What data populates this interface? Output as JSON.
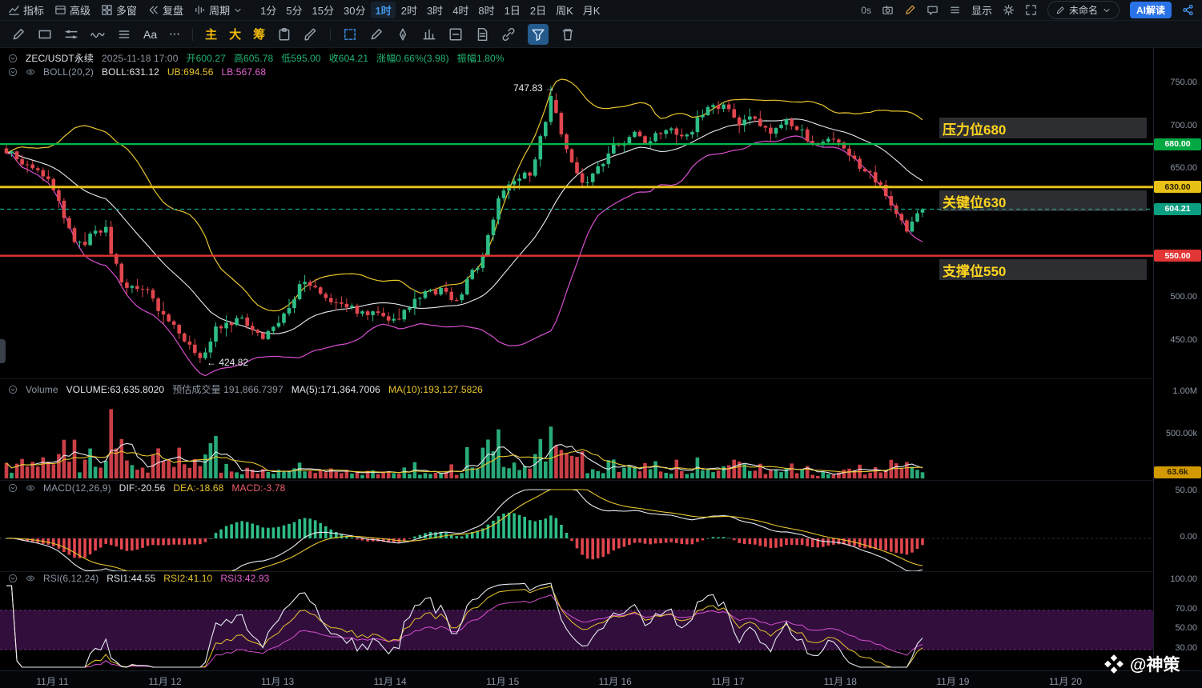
{
  "topbar": {
    "left_items": [
      {
        "name": "indicators",
        "icon": "indicator",
        "label": "指标"
      },
      {
        "name": "advanced",
        "icon": "advanced",
        "label": "高级"
      },
      {
        "name": "multi-window",
        "icon": "multiwindow",
        "label": "多窗"
      },
      {
        "name": "replay",
        "icon": "replay",
        "label": "复盘"
      },
      {
        "name": "period",
        "icon": "period",
        "label": "周期",
        "chevron": true
      }
    ],
    "timeframes": [
      "1分",
      "5分",
      "15分",
      "30分",
      "1时",
      "2时",
      "3时",
      "4时",
      "8时",
      "1日",
      "2日",
      "周K",
      "月K"
    ],
    "active_timeframe": "1时",
    "timer": "0s",
    "display_label": "显示",
    "untitled_label": "未命名",
    "ai_label": "AI解读"
  },
  "toolbar2": {
    "left_tools": [
      {
        "name": "draw-pencil",
        "icon": "pencil"
      },
      {
        "name": "draw-rect",
        "icon": "recttool"
      },
      {
        "name": "draw-lines",
        "icon": "linestool"
      },
      {
        "name": "draw-wave",
        "icon": "wavetool"
      },
      {
        "name": "draw-list",
        "icon": "list"
      },
      {
        "name": "draw-text",
        "text": "Aa"
      },
      {
        "name": "draw-more",
        "text": "⋯"
      }
    ],
    "chips": [
      "主",
      "大",
      "筹"
    ],
    "mid_tools": [
      {
        "name": "clipboard",
        "icon": "clipboard"
      },
      {
        "name": "brush",
        "icon": "brush"
      }
    ],
    "right_tools": [
      {
        "name": "select-region",
        "icon": "selectbox",
        "accent": true
      },
      {
        "name": "pencil-2",
        "icon": "pencil"
      },
      {
        "name": "pen",
        "icon": "pen"
      },
      {
        "name": "pattern-bars",
        "icon": "bars"
      },
      {
        "name": "box",
        "icon": "box"
      },
      {
        "name": "document",
        "icon": "doc"
      },
      {
        "name": "attach",
        "icon": "link"
      },
      {
        "name": "filter",
        "icon": "funnel",
        "active": true
      },
      {
        "name": "trash",
        "icon": "trash"
      }
    ]
  },
  "legend_main": [
    {
      "t": "ZEC/USDT永续",
      "c": "#dfe5ec"
    },
    {
      "t": "2025-11-18 17:00",
      "c": "#8d97a5"
    },
    {
      "t": "开600.27",
      "c": "#21b573"
    },
    {
      "t": "高605.78",
      "c": "#21b573"
    },
    {
      "t": "低595.00",
      "c": "#21b573"
    },
    {
      "t": "收604.21",
      "c": "#21b573"
    },
    {
      "t": "涨幅0.66%(3.98)",
      "c": "#21b573"
    },
    {
      "t": "振幅1.80%",
      "c": "#21b573"
    }
  ],
  "legend_boll": [
    {
      "t": "BOLL(20,2)",
      "c": "#8d97a5"
    },
    {
      "t": "BOLL:631.12",
      "c": "#dfe5ec"
    },
    {
      "t": "UB:694.56",
      "c": "#e8c52e"
    },
    {
      "t": "LB:567.68",
      "c": "#e361cf"
    }
  ],
  "legend_volume": [
    {
      "t": "Volume",
      "c": "#8d97a5"
    },
    {
      "t": "VOLUME:63,635.8020",
      "c": "#dfe5ec"
    },
    {
      "t": "预估成交量 191,866.7397",
      "c": "#8d97a5"
    },
    {
      "t": "MA(5):171,364.7006",
      "c": "#dfe5ec"
    },
    {
      "t": "MA(10):193,127.5826",
      "c": "#e8c52e"
    }
  ],
  "legend_macd": [
    {
      "t": "MACD(12,26,9)",
      "c": "#8d97a5"
    },
    {
      "t": "DIF:-20.56",
      "c": "#dfe5ec"
    },
    {
      "t": "DEA:-18.68",
      "c": "#e8c52e"
    },
    {
      "t": "MACD:-3.78",
      "c": "#ef5f6b"
    }
  ],
  "legend_rsi": [
    {
      "t": "RSI(6,12,24)",
      "c": "#8d97a5"
    },
    {
      "t": "RSI1:44.55",
      "c": "#dfe5ec"
    },
    {
      "t": "RSI2:41.10",
      "c": "#e8c52e"
    },
    {
      "t": "RSI3:42.93",
      "c": "#e361cf"
    }
  ],
  "annotations": {
    "peak": "747.83 →",
    "low": "← 424.82",
    "bands": [
      "压力位680",
      "关键位630",
      "支撑位550"
    ]
  },
  "axis": {
    "main_labels": [
      "750.00",
      "700.00",
      "650.00",
      "500.00",
      "450.00"
    ],
    "main_values": [
      750,
      700,
      650,
      500,
      450
    ],
    "volume": [
      {
        "label": "1.00M",
        "value": 1000000
      },
      {
        "label": "500.00k",
        "value": 500000
      }
    ],
    "macd": [
      {
        "label": "50.00",
        "value": 50
      },
      {
        "label": "0.00",
        "value": 0
      }
    ],
    "rsi": [
      {
        "label": "100.00",
        "value": 100
      },
      {
        "label": "70.00",
        "value": 70
      },
      {
        "label": "50.00",
        "value": 50
      },
      {
        "label": "30.00",
        "value": 30
      }
    ],
    "badges": [
      {
        "label": "680.00",
        "price": 680,
        "bg": "#00a843",
        "fg": "#ffffff"
      },
      {
        "label": "630.00",
        "price": 630,
        "bg": "#e8c117",
        "fg": "#2a2200"
      },
      {
        "label": "604.21",
        "price": 604.21,
        "bg": "#0b9e81",
        "fg": "#ffffff"
      },
      {
        "label": "550.00",
        "price": 550,
        "bg": "#e23535",
        "fg": "#ffffff"
      }
    ],
    "volume_badge": {
      "label": "63.6k",
      "value": 63636,
      "bg": "#d29a00",
      "fg": "#2a2200"
    }
  },
  "dates": [
    "11月 11",
    "11月 12",
    "11月 13",
    "11月 14",
    "11月 15",
    "11月 16",
    "11月 17",
    "11月 18",
    "11月 19",
    "11月 20"
  ],
  "watermark": "@神策",
  "chart": {
    "symbol": "ZEC/USDT永续",
    "interval": "1时",
    "levels": [
      {
        "name": "resistance",
        "price": 680,
        "color": "#00b64a",
        "width": 2.4
      },
      {
        "name": "key",
        "price": 630,
        "color": "#e6c117",
        "width": 3
      },
      {
        "name": "support",
        "price": 550,
        "color": "#e23535",
        "width": 2.4
      }
    ],
    "current_price": 604.21,
    "last_candle": {
      "open": 600.27,
      "high": 605.78,
      "low": 595.0,
      "close": 604.21
    },
    "peak_price": 747.83,
    "low_price": 424.82,
    "last_volume": 63636,
    "price_path": [
      [
        0,
        672
      ],
      [
        0.045,
        640
      ],
      [
        0.076,
        560
      ],
      [
        0.107,
        585
      ],
      [
        0.124,
        520
      ],
      [
        0.155,
        505
      ],
      [
        0.181,
        470
      ],
      [
        0.214,
        428
      ],
      [
        0.229,
        465
      ],
      [
        0.255,
        480
      ],
      [
        0.282,
        455
      ],
      [
        0.299,
        470
      ],
      [
        0.321,
        520
      ],
      [
        0.343,
        505
      ],
      [
        0.369,
        490
      ],
      [
        0.395,
        485
      ],
      [
        0.421,
        470
      ],
      [
        0.448,
        500
      ],
      [
        0.478,
        515
      ],
      [
        0.491,
        495
      ],
      [
        0.517,
        545
      ],
      [
        0.535,
        610
      ],
      [
        0.557,
        640
      ],
      [
        0.574,
        650
      ],
      [
        0.596,
        735
      ],
      [
        0.609,
        680
      ],
      [
        0.631,
        628
      ],
      [
        0.644,
        650
      ],
      [
        0.657,
        670
      ],
      [
        0.684,
        695
      ],
      [
        0.701,
        680
      ],
      [
        0.719,
        700
      ],
      [
        0.736,
        682
      ],
      [
        0.762,
        718
      ],
      [
        0.784,
        728
      ],
      [
        0.797,
        700
      ],
      [
        0.815,
        712
      ],
      [
        0.832,
        690
      ],
      [
        0.845,
        708
      ],
      [
        0.867,
        695
      ],
      [
        0.885,
        680
      ],
      [
        0.902,
        690
      ],
      [
        0.915,
        672
      ],
      [
        0.933,
        655
      ],
      [
        0.946,
        640
      ],
      [
        0.959,
        625
      ],
      [
        0.972,
        600
      ],
      [
        0.985,
        580
      ],
      [
        0.993,
        596
      ],
      [
        1,
        604.21
      ]
    ],
    "colors": {
      "up": "#2ebd85",
      "down": "#e0464e",
      "boll_mid": "#e6ebf2",
      "boll_up": "#e8c52e",
      "boll_low": "#d84fd0",
      "ma5": "#e6ebf2",
      "ma10": "#e8c52e",
      "dif": "#e6ebf2",
      "dea": "#e8c52e",
      "hist_up": "#2ebd85",
      "hist_down": "#e0464e",
      "rsi1": "#e6ebf2",
      "rsi2": "#e8c52e",
      "rsi3": "#d84fd0",
      "current": "#0ea78a",
      "rsi_band": "rgba(116,34,142,0.42)"
    }
  }
}
